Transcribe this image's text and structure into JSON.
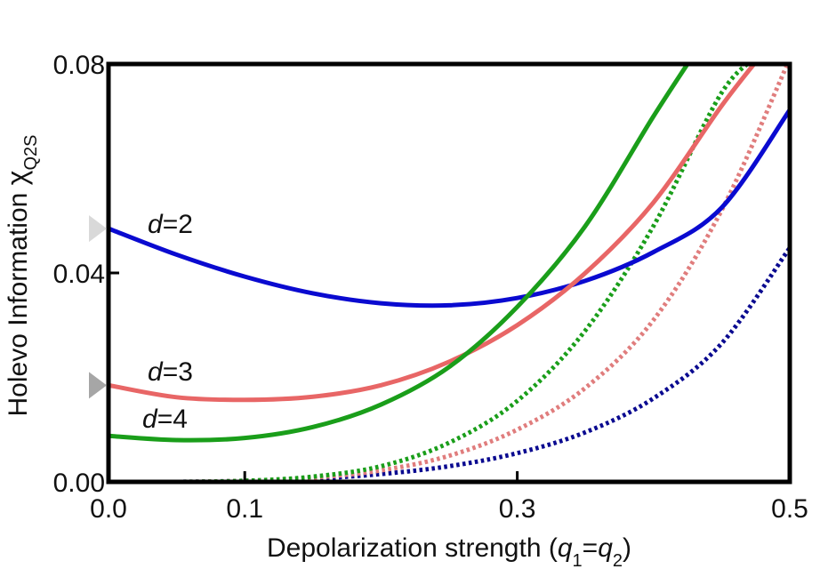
{
  "chart_data": {
    "type": "line",
    "xlabel_prefix": "Depolarization strength (",
    "xlabel_q1": "q",
    "xlabel_sub1": "1",
    "xlabel_eq": "=",
    "xlabel_q2": "q",
    "xlabel_sub2": "2",
    "xlabel_suffix": ")",
    "ylabel_text": "Holevo Information ",
    "ylabel_chi": "χ",
    "ylabel_sub": "Q2S",
    "xlim": [
      0,
      0.5
    ],
    "ylim": [
      0,
      0.08
    ],
    "x_ticks": [
      {
        "value": 0.0,
        "label": "0.0"
      },
      {
        "value": 0.1,
        "label": "0.1"
      },
      {
        "value": 0.3,
        "label": "0.3"
      },
      {
        "value": 0.5,
        "label": "0.5"
      }
    ],
    "y_ticks": [
      {
        "value": 0.0,
        "label": "0.00"
      },
      {
        "value": 0.04,
        "label": "0.04"
      },
      {
        "value": 0.08,
        "label": "0.08"
      }
    ],
    "curve_labels": [
      {
        "d": "d",
        "eq": "=2",
        "series": "d=2 solid"
      },
      {
        "d": "d",
        "eq": "=3",
        "series": "d=3 solid"
      },
      {
        "d": "d",
        "eq": "=4",
        "series": "d=4 solid"
      }
    ],
    "markers": [
      {
        "name": "d=2 start marker",
        "y": 0.0485,
        "color": "#d9d9d9"
      },
      {
        "name": "d=3 start marker",
        "y": 0.0185,
        "color": "#a6a6a6"
      }
    ],
    "series": [
      {
        "name": "d=2 solid",
        "color": "#0a0ad0",
        "style": "solid",
        "x": [
          0,
          0.05,
          0.1,
          0.15,
          0.2,
          0.25,
          0.3,
          0.35,
          0.4,
          0.45,
          0.5
        ],
        "y": [
          0.0485,
          0.0435,
          0.0393,
          0.0361,
          0.0342,
          0.0338,
          0.0352,
          0.0385,
          0.044,
          0.0525,
          0.0712
        ]
      },
      {
        "name": "d=3 solid",
        "color": "#e86666",
        "style": "solid",
        "x": [
          0,
          0.05,
          0.1,
          0.15,
          0.2,
          0.25,
          0.3,
          0.35,
          0.4,
          0.45,
          0.48
        ],
        "y": [
          0.0185,
          0.0162,
          0.0157,
          0.0163,
          0.0185,
          0.023,
          0.03,
          0.04,
          0.0535,
          0.072,
          0.082
        ]
      },
      {
        "name": "d=4 solid",
        "color": "#1a9e1a",
        "style": "solid",
        "x": [
          0,
          0.05,
          0.1,
          0.15,
          0.2,
          0.25,
          0.3,
          0.35,
          0.4,
          0.43
        ],
        "y": [
          0.0088,
          0.008,
          0.0084,
          0.0105,
          0.0148,
          0.022,
          0.0335,
          0.049,
          0.07,
          0.082
        ]
      },
      {
        "name": "d=2 dotted",
        "color": "#0a0a90",
        "style": "dotted",
        "x": [
          0,
          0.05,
          0.1,
          0.15,
          0.2,
          0.25,
          0.3,
          0.35,
          0.4,
          0.45,
          0.5
        ],
        "y": [
          0.0,
          0.0,
          0.0002,
          0.0006,
          0.0015,
          0.003,
          0.0055,
          0.0095,
          0.016,
          0.0265,
          0.0448
        ]
      },
      {
        "name": "d=3 dotted",
        "color": "#e07d7d",
        "style": "dotted",
        "x": [
          0,
          0.05,
          0.1,
          0.15,
          0.2,
          0.25,
          0.3,
          0.35,
          0.4,
          0.45,
          0.5
        ],
        "y": [
          0.0,
          0.0,
          0.0002,
          0.0008,
          0.0022,
          0.005,
          0.01,
          0.018,
          0.031,
          0.052,
          0.081
        ]
      },
      {
        "name": "d=4 dotted",
        "color": "#1a9e1a",
        "style": "dotted",
        "x": [
          0,
          0.05,
          0.1,
          0.15,
          0.2,
          0.25,
          0.3,
          0.35,
          0.4,
          0.45,
          0.48
        ],
        "y": [
          0.0,
          0.0,
          0.0002,
          0.001,
          0.003,
          0.0075,
          0.0155,
          0.029,
          0.049,
          0.0745,
          0.082
        ]
      }
    ]
  }
}
